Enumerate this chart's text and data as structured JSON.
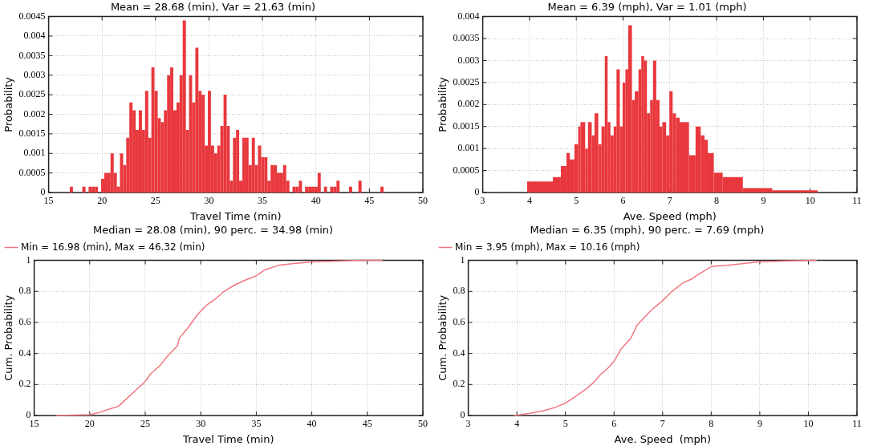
{
  "chart_data": [
    {
      "type": "histogram",
      "title": "Mean = 28.68 (min), Var = 21.63 (min)",
      "xlabel": "Travel Time (min)",
      "ylabel": "Probability",
      "color": "#e8383d",
      "bins": [
        16.98,
        17.27,
        17.57,
        17.86,
        18.15,
        18.45,
        18.74,
        19.03,
        19.33,
        19.62,
        19.91,
        20.21,
        20.5,
        20.79,
        21.09,
        21.38,
        21.67,
        21.97,
        22.26,
        22.55,
        22.85,
        23.14,
        23.43,
        23.73,
        24.02,
        24.32,
        24.61,
        24.9,
        25.2,
        25.49,
        25.78,
        26.08,
        26.37,
        26.66,
        26.96,
        27.25,
        27.54,
        27.84,
        28.13,
        28.42,
        28.72,
        29.01,
        29.3,
        29.6,
        29.89,
        30.18,
        30.48,
        30.77,
        31.06,
        31.36,
        31.65,
        31.94,
        32.24,
        32.53,
        32.82,
        33.12,
        33.41,
        33.7,
        34.0,
        34.29,
        34.58,
        34.88,
        35.17,
        35.46,
        35.76,
        36.05,
        36.34,
        36.64,
        36.93,
        37.22,
        37.52,
        37.81,
        38.1,
        38.4,
        38.69,
        38.98,
        39.28,
        39.57,
        39.86,
        40.16,
        40.45,
        40.75,
        41.04,
        41.33,
        41.63,
        41.92,
        42.21,
        42.51,
        42.8,
        43.09,
        43.39,
        43.68,
        43.97,
        44.27,
        44.56,
        44.85,
        45.15,
        45.44,
        45.73,
        46.03,
        46.32
      ],
      "values": [
        0.00015,
        0,
        0,
        0,
        0.00015,
        0,
        0.00015,
        0.00015,
        0.00015,
        0,
        0.00035,
        0.0005,
        0.0005,
        0.001,
        0.0005,
        0.00015,
        0.001,
        0.0007,
        0.0014,
        0.0023,
        0.0021,
        0.0016,
        0.0021,
        0.0016,
        0.0026,
        0.0014,
        0.0032,
        0.0026,
        0.0019,
        0.0018,
        0.0021,
        0.003,
        0.0032,
        0.0021,
        0.0023,
        0.003,
        0.0044,
        0.0016,
        0.003,
        0.0023,
        0.0037,
        0.0026,
        0.0025,
        0.0012,
        0.0026,
        0.0012,
        0.001,
        0.0012,
        0.0017,
        0.0025,
        0.0017,
        0.0003,
        0.0014,
        0.0016,
        0.0003,
        0.0014,
        0.0014,
        0.0007,
        0.0014,
        0.0007,
        0.0012,
        0.0009,
        0.0009,
        0.0003,
        0.0007,
        0.0007,
        0.0005,
        0.0005,
        0.0007,
        0.0003,
        0,
        0.00015,
        0.00015,
        0.0003,
        0,
        0.00015,
        0.00015,
        0.00015,
        0.00015,
        0.0005,
        0,
        0.00015,
        0,
        0.00015,
        0.00015,
        0.0003,
        0,
        0,
        0,
        0.00015,
        0,
        0,
        0.0003,
        0,
        0,
        0,
        0,
        0,
        0,
        0.00015
      ],
      "xlim": [
        15,
        50
      ],
      "xticks": [
        15,
        20,
        25,
        30,
        35,
        40,
        45,
        50
      ],
      "ylim": [
        0,
        0.0045
      ],
      "yticks": [
        0,
        0.0005,
        0.001,
        0.0015,
        0.002,
        0.0025,
        0.003,
        0.0035,
        0.004,
        0.0045
      ],
      "grid": true
    },
    {
      "type": "histogram",
      "title": "Mean = 6.39 (mph), Var = 1.01 (mph)",
      "xlabel": "Ave. Speed (mph)",
      "ylabel": "Probability",
      "color": "#e8383d",
      "bins": [
        3.95,
        4.5,
        4.67,
        4.79,
        4.86,
        4.96,
        5.04,
        5.09,
        5.19,
        5.25,
        5.33,
        5.39,
        5.47,
        5.54,
        5.61,
        5.67,
        5.73,
        5.8,
        5.86,
        5.93,
        5.99,
        6.05,
        6.11,
        6.19,
        6.25,
        6.33,
        6.39,
        6.45,
        6.51,
        6.58,
        6.64,
        6.71,
        6.78,
        6.84,
        6.92,
        6.99,
        7.06,
        7.13,
        7.21,
        7.41,
        7.55,
        7.66,
        7.74,
        7.81,
        7.94,
        8.13,
        8.56,
        9.19,
        10.16
      ],
      "values": [
        0.00025,
        0.00035,
        0.0006,
        0.0009,
        0.00075,
        0.0011,
        0.0015,
        0.0016,
        0.001,
        0.0016,
        0.0013,
        0.0018,
        0.0011,
        0.0015,
        0.0031,
        0.0016,
        0.0013,
        0.0015,
        0.0028,
        0.0015,
        0.0025,
        0.0028,
        0.0038,
        0.0021,
        0.0023,
        0.0028,
        0.0031,
        0.003,
        0.0018,
        0.0021,
        0.003,
        0.0021,
        0.0015,
        0.0016,
        0.0013,
        0.0023,
        0.0018,
        0.0017,
        0.0016,
        0.00085,
        0.0015,
        0.0013,
        0.0012,
        0.0009,
        0.00045,
        0.00035,
        0.0001,
        5e-05
      ],
      "xlim": [
        3,
        11
      ],
      "xticks": [
        3,
        4,
        5,
        6,
        7,
        8,
        9,
        10,
        11
      ],
      "ylim": [
        0,
        0.004
      ],
      "yticks": [
        0,
        0.0005,
        0.001,
        0.0015,
        0.002,
        0.0025,
        0.003,
        0.0035,
        0.004
      ],
      "grid": true
    },
    {
      "type": "line",
      "title": "Median = 28.08 (min), 90 perc. = 34.98 (min)",
      "xlabel": "Travel Time (min)",
      "ylabel": "Cum. Probability",
      "series": [
        {
          "name": "Min = 16.98 (min), Max = 46.32 (min)",
          "color": "#f07880",
          "x": [
            16.98,
            20,
            20.9,
            21.7,
            22.6,
            23.2,
            24.1,
            25,
            25.5,
            26.3,
            27.1,
            27.9,
            28.08,
            28.9,
            29.7,
            30.5,
            31.3,
            32.1,
            32.9,
            33.9,
            34.98,
            35.8,
            37.1,
            38.4,
            40,
            42.3,
            44.4,
            46.32
          ],
          "values": [
            0,
            0.005,
            0.02,
            0.04,
            0.06,
            0.1,
            0.16,
            0.22,
            0.27,
            0.32,
            0.39,
            0.45,
            0.5,
            0.57,
            0.65,
            0.71,
            0.75,
            0.8,
            0.835,
            0.87,
            0.9,
            0.94,
            0.97,
            0.98,
            0.99,
            0.995,
            1,
            1
          ]
        }
      ],
      "xlim": [
        15,
        50
      ],
      "xticks": [
        15,
        20,
        25,
        30,
        35,
        40,
        45,
        50
      ],
      "ylim": [
        0,
        1
      ],
      "yticks": [
        0,
        0.2,
        0.4,
        0.6,
        0.8,
        1
      ],
      "grid": true,
      "legend": "top left"
    },
    {
      "type": "line",
      "title": "Median = 6.35 (mph), 90 perc. = 7.69 (mph)",
      "xlabel": "Ave. Speed  (mph)",
      "ylabel": "Cum. Probability",
      "series": [
        {
          "name": "Min = 3.95 (mph), Max = 10.16 (mph)",
          "color": "#f07880",
          "x": [
            3.95,
            4.24,
            4.53,
            4.77,
            5,
            5.24,
            5.42,
            5.57,
            5.71,
            5.89,
            6,
            6.15,
            6.35,
            6.47,
            6.59,
            6.77,
            7,
            7.19,
            7.42,
            7.6,
            7.69,
            8,
            8.37,
            8.96,
            9.55,
            10.16
          ],
          "values": [
            0,
            0.013,
            0.03,
            0.05,
            0.08,
            0.13,
            0.17,
            0.21,
            0.26,
            0.31,
            0.35,
            0.43,
            0.5,
            0.58,
            0.62,
            0.68,
            0.74,
            0.8,
            0.855,
            0.88,
            0.9,
            0.96,
            0.97,
            0.99,
            0.997,
            1
          ]
        }
      ],
      "xlim": [
        3,
        11
      ],
      "xticks": [
        3,
        4,
        5,
        6,
        7,
        8,
        9,
        10,
        11
      ],
      "ylim": [
        0,
        1
      ],
      "yticks": [
        0,
        0.2,
        0.4,
        0.6,
        0.8,
        1
      ],
      "grid": true,
      "legend": "top left"
    }
  ]
}
